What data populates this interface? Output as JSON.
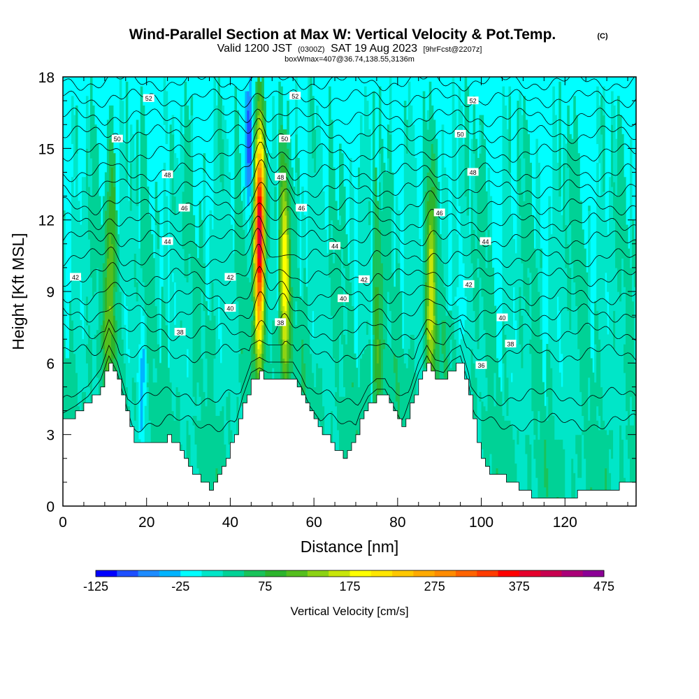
{
  "titles": {
    "main": "Wind-Parallel Section at Max W: Vertical Velocity & Pot.Temp.",
    "copyright": "(C)",
    "valid_prefix": "Valid 1200 JST",
    "valid_zulu": "(0300Z)",
    "valid_date": "SAT 19 Aug 2023",
    "forecast": "[9hrFcst@2207z]",
    "box_info": "boxWmax=407@36.74,138.55,3136m"
  },
  "chart_data": {
    "type": "heatmap",
    "xlabel": "Distance [nm]",
    "ylabel": "Height [Kft MSL]",
    "xlim": [
      0,
      137
    ],
    "ylim": [
      0,
      18
    ],
    "x_ticks": [
      0,
      20,
      40,
      60,
      80,
      100,
      120
    ],
    "y_ticks": [
      0,
      3,
      6,
      9,
      12,
      15,
      18
    ],
    "colorbar": {
      "title": "Vertical Velocity [cm/s]",
      "min": -125,
      "step": 25,
      "labels": [
        -125,
        -25,
        75,
        175,
        275,
        375,
        475
      ],
      "colors": [
        "#0000ff",
        "#1e50ff",
        "#1e8cff",
        "#00b4ff",
        "#00ffff",
        "#00e6c8",
        "#00d296",
        "#19c35a",
        "#2db42d",
        "#55be1e",
        "#8cd214",
        "#c8e60a",
        "#ffff00",
        "#ffe600",
        "#ffc800",
        "#ffaa00",
        "#ff8c00",
        "#ff6400",
        "#ff3c00",
        "#ff0000",
        "#e6002d",
        "#c80050",
        "#aa0078",
        "#8c0096"
      ]
    },
    "terrain_kft": [
      [
        0,
        3.6
      ],
      [
        3,
        3.9
      ],
      [
        6,
        4.3
      ],
      [
        9,
        5.0
      ],
      [
        11,
        6.0
      ],
      [
        13,
        5.3
      ],
      [
        15,
        4.0
      ],
      [
        17,
        2.8
      ],
      [
        19,
        2.7
      ],
      [
        21,
        2.7
      ],
      [
        23,
        2.7
      ],
      [
        25,
        2.9
      ],
      [
        27,
        2.5
      ],
      [
        29,
        1.9
      ],
      [
        31,
        1.4
      ],
      [
        33,
        1.0
      ],
      [
        35,
        0.8
      ],
      [
        37,
        1.3
      ],
      [
        39,
        2.0
      ],
      [
        41,
        3.0
      ],
      [
        43,
        4.3
      ],
      [
        45,
        5.3
      ],
      [
        47,
        5.5
      ],
      [
        49,
        5.3
      ],
      [
        51,
        5.3
      ],
      [
        53,
        5.3
      ],
      [
        55,
        5.3
      ],
      [
        57,
        4.7
      ],
      [
        59,
        3.9
      ],
      [
        61,
        3.4
      ],
      [
        63,
        2.9
      ],
      [
        65,
        2.4
      ],
      [
        67,
        2.0
      ],
      [
        69,
        2.6
      ],
      [
        71,
        3.6
      ],
      [
        73,
        4.3
      ],
      [
        75,
        4.6
      ],
      [
        77,
        4.6
      ],
      [
        79,
        3.9
      ],
      [
        81,
        3.2
      ],
      [
        83,
        4.2
      ],
      [
        85,
        5.3
      ],
      [
        87,
        6.0
      ],
      [
        89,
        5.4
      ],
      [
        91,
        5.3
      ],
      [
        93,
        5.8
      ],
      [
        95,
        6.0
      ],
      [
        97,
        4.8
      ],
      [
        99,
        2.7
      ],
      [
        101,
        1.5
      ],
      [
        103,
        1.4
      ],
      [
        105,
        1.3
      ],
      [
        107,
        1.0
      ],
      [
        109,
        0.7
      ],
      [
        111,
        0.5
      ],
      [
        113,
        0.3
      ],
      [
        117,
        0.3
      ],
      [
        120,
        0.3
      ],
      [
        123,
        0.5
      ],
      [
        126,
        0.8
      ],
      [
        129,
        0.8
      ],
      [
        132,
        0.8
      ],
      [
        135,
        1.0
      ],
      [
        137,
        1.0
      ]
    ],
    "updrafts": [
      {
        "x": 47,
        "y": 11.5,
        "peak": 407
      },
      {
        "x": 53,
        "y": 9.5,
        "peak": 175
      },
      {
        "x": 88,
        "y": 9.0,
        "peak": 140
      },
      {
        "x": 75,
        "y": 7.0,
        "peak": 80
      },
      {
        "x": 11,
        "y": 8.0,
        "peak": 75
      },
      {
        "x": 12,
        "y": 12.0,
        "peak": 60
      }
    ],
    "downdrafts": [
      {
        "x": 44.5,
        "y": 15.0,
        "peak": -115
      },
      {
        "x": 19,
        "y": 4.5,
        "peak": -55
      },
      {
        "x": 95,
        "y": 8.0,
        "peak": -40
      }
    ],
    "theta_contours": [
      {
        "value": 36,
        "base_kft": 3.5
      },
      {
        "value": 37,
        "base_kft": 4.6
      },
      {
        "value": 38,
        "base_kft": 6.4
      },
      {
        "value": 39,
        "base_kft": 7.3
      },
      {
        "value": 40,
        "base_kft": 8.1
      },
      {
        "value": 41,
        "base_kft": 8.8
      },
      {
        "value": 42,
        "base_kft": 9.6
      },
      {
        "value": 43,
        "base_kft": 10.4
      },
      {
        "value": 44,
        "base_kft": 11.2
      },
      {
        "value": 45,
        "base_kft": 11.9
      },
      {
        "value": 46,
        "base_kft": 12.6
      },
      {
        "value": 47,
        "base_kft": 13.3
      },
      {
        "value": 48,
        "base_kft": 14.0
      },
      {
        "value": 49,
        "base_kft": 14.8
      },
      {
        "value": 50,
        "base_kft": 15.6
      },
      {
        "value": 51,
        "base_kft": 16.3
      },
      {
        "value": 52,
        "base_kft": 17.1
      },
      {
        "value": 53,
        "base_kft": 17.8
      }
    ],
    "contour_labels": [
      {
        "text": "52",
        "x": 20.5,
        "y": 17.1
      },
      {
        "text": "52",
        "x": 55.5,
        "y": 17.2
      },
      {
        "text": "52",
        "x": 98,
        "y": 17.0
      },
      {
        "text": "50",
        "x": 13,
        "y": 15.4
      },
      {
        "text": "50",
        "x": 53,
        "y": 15.4
      },
      {
        "text": "50",
        "x": 95,
        "y": 15.6
      },
      {
        "text": "48",
        "x": 25,
        "y": 13.9
      },
      {
        "text": "48",
        "x": 52,
        "y": 13.8
      },
      {
        "text": "48",
        "x": 98,
        "y": 14.0
      },
      {
        "text": "46",
        "x": 29,
        "y": 12.5
      },
      {
        "text": "46",
        "x": 57,
        "y": 12.5
      },
      {
        "text": "46",
        "x": 90,
        "y": 12.3
      },
      {
        "text": "44",
        "x": 25,
        "y": 11.1
      },
      {
        "text": "44",
        "x": 65,
        "y": 10.9
      },
      {
        "text": "44",
        "x": 101,
        "y": 11.1
      },
      {
        "text": "42",
        "x": 3,
        "y": 9.6
      },
      {
        "text": "42",
        "x": 40,
        "y": 9.6
      },
      {
        "text": "42",
        "x": 72,
        "y": 9.5
      },
      {
        "text": "42",
        "x": 97,
        "y": 9.3
      },
      {
        "text": "40",
        "x": 40,
        "y": 8.3
      },
      {
        "text": "40",
        "x": 67,
        "y": 8.7
      },
      {
        "text": "40",
        "x": 105,
        "y": 7.9
      },
      {
        "text": "38",
        "x": 28,
        "y": 7.3
      },
      {
        "text": "38",
        "x": 52,
        "y": 7.7
      },
      {
        "text": "38",
        "x": 107,
        "y": 6.8
      },
      {
        "text": "36",
        "x": 100,
        "y": 5.9
      }
    ]
  }
}
